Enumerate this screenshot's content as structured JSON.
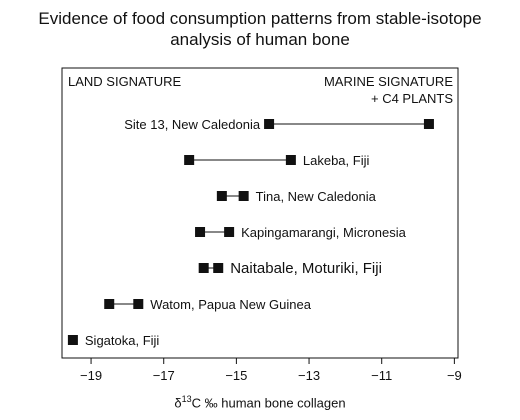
{
  "title_line1": "Evidence of food consumption patterns from stable-isotope",
  "title_line2": "analysis of human bone",
  "corner_left": "LAND SIGNATURE",
  "corner_right_line1": "MARINE SIGNATURE",
  "corner_right_line2": "+ C4 PLANTS",
  "xlabel": {
    "delta": "δ",
    "sup": "13",
    "rest": "C ‰ human bone collagen"
  },
  "chart_data": {
    "type": "range",
    "title": "Evidence of food consumption patterns from stable-isotope analysis of human bone",
    "xlabel": "δ13C ‰ human bone collagen",
    "xlim": [
      -19.8,
      -8.9
    ],
    "xticks": [
      -19,
      -17,
      -15,
      -13,
      -11,
      -9
    ],
    "grid": false,
    "series": [
      {
        "site": "Site 13, New Caledonia",
        "min": -14.1,
        "max": -9.7
      },
      {
        "site": "Lakeba, Fiji",
        "min": -16.3,
        "max": -13.5
      },
      {
        "site": "Tina, New Caledonia",
        "min": -15.4,
        "max": -14.8
      },
      {
        "site": "Kapingamarangi, Micronesia",
        "min": -16.0,
        "max": -15.2
      },
      {
        "site": "Naitabale, Moturiki, Fiji",
        "min": -15.9,
        "max": -15.5
      },
      {
        "site": "Watom, Papua New Guinea",
        "min": -18.5,
        "max": -17.7
      },
      {
        "site": "Sigatoka, Fiji",
        "min": -19.5,
        "max": -19.5
      }
    ],
    "label_side": [
      "left",
      "right",
      "right",
      "right",
      "right",
      "right",
      "right"
    ],
    "label_emphasis": [
      false,
      false,
      false,
      false,
      true,
      false,
      false
    ]
  }
}
